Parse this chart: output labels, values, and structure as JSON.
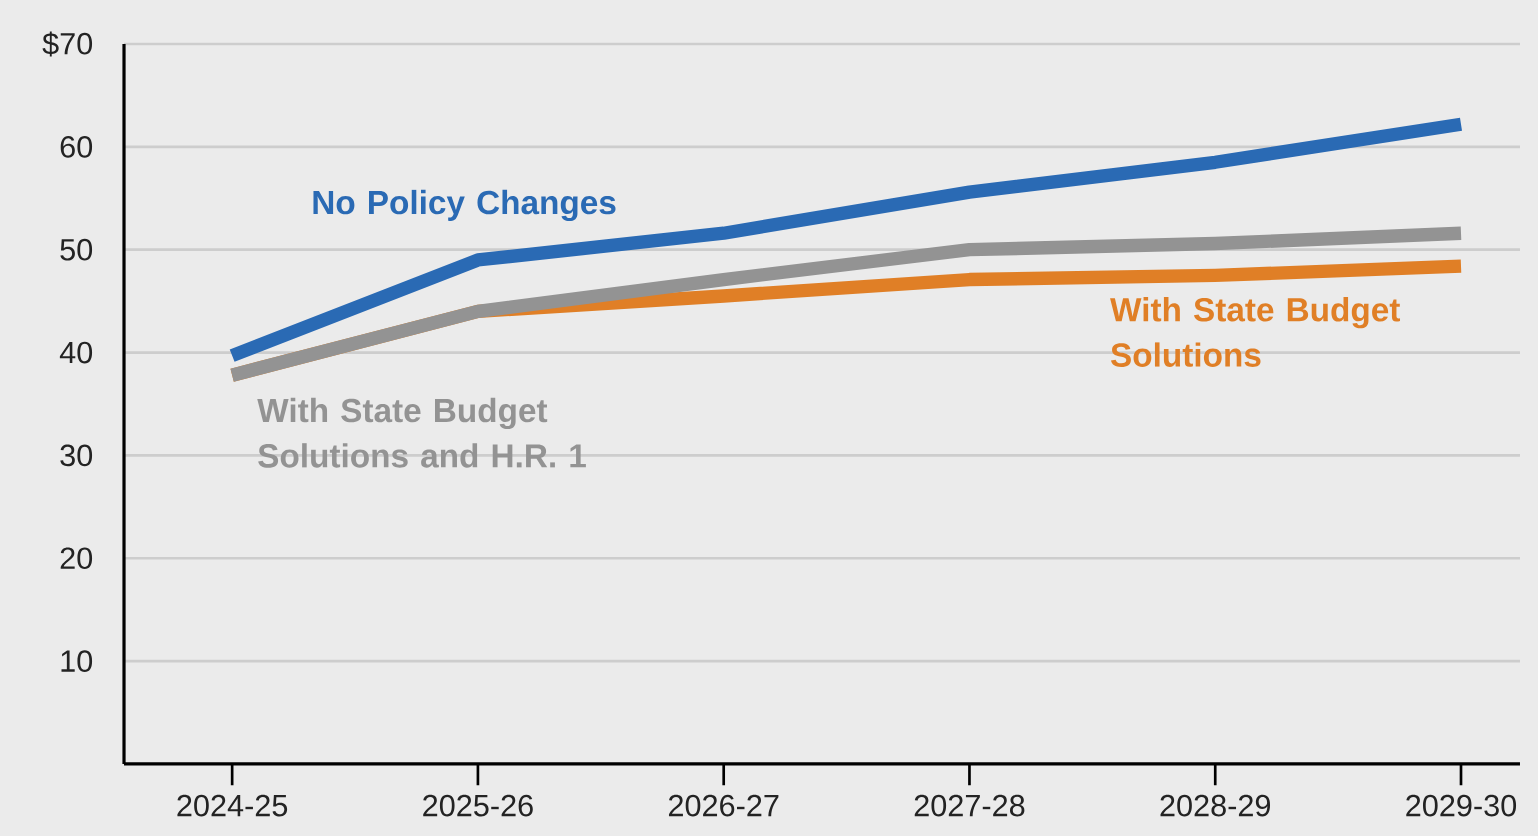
{
  "chart_data": {
    "type": "line",
    "categories": [
      "2024-25",
      "2025-26",
      "2026-27",
      "2027-28",
      "2028-29",
      "2029-30"
    ],
    "ylim": [
      0,
      70
    ],
    "yticks": [
      10,
      20,
      30,
      40,
      50,
      60,
      {
        "value": 70,
        "label": "$70"
      }
    ],
    "grid": "y",
    "legend": false,
    "marker": "none",
    "line_style": "solid",
    "series": [
      {
        "name": "No Policy Changes",
        "color": "#2a6ab4",
        "values": [
          39.7,
          49,
          51.6,
          55.6,
          58.5,
          62.2
        ]
      },
      {
        "name": "With State Budget Solutions",
        "color": "#e07f26",
        "values": [
          37.8,
          44,
          45.5,
          47.1,
          47.5,
          48.4
        ]
      },
      {
        "name": "With State Budget Solutions and H.R. 1",
        "color": "#939393",
        "values": [
          37.8,
          44,
          47.1,
          50,
          50.6,
          51.6
        ]
      }
    ]
  }
}
